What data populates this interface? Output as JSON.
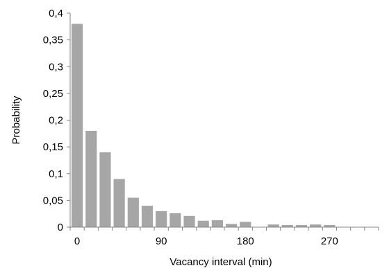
{
  "chart_data": {
    "type": "bar",
    "title": "",
    "xlabel": "Vacancy interval (min)",
    "ylabel": "Probability",
    "ylim": [
      0,
      0.4
    ],
    "y_ticks": [
      "0",
      "0,05",
      "0,1",
      "0,15",
      "0,2",
      "0,25",
      "0,3",
      "0,35",
      "0,4"
    ],
    "x_ticks": [
      {
        "label": "0",
        "at": 0
      },
      {
        "label": "90",
        "at": 90
      },
      {
        "label": "180",
        "at": 180
      },
      {
        "label": "270",
        "at": 270
      }
    ],
    "x_range": [
      -7.5,
      322.5
    ],
    "bin_width": 15,
    "x": [
      0,
      15,
      30,
      45,
      60,
      75,
      90,
      105,
      120,
      135,
      150,
      165,
      180,
      195,
      210,
      225,
      240,
      255,
      270,
      285,
      300,
      315
    ],
    "values": [
      0.38,
      0.18,
      0.14,
      0.09,
      0.055,
      0.04,
      0.03,
      0.026,
      0.021,
      0.012,
      0.013,
      0.006,
      0.01,
      0.0,
      0.005,
      0.004,
      0.004,
      0.005,
      0.004,
      0.0,
      0.0,
      0.0
    ],
    "bar_color": "#a6a6a6",
    "grid": false,
    "legend": "none"
  }
}
